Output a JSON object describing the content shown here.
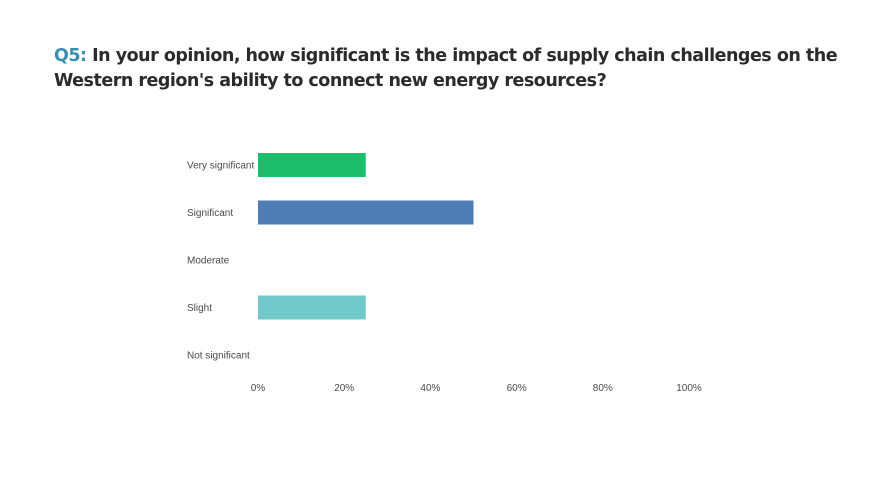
{
  "title": {
    "qnum": "Q5:",
    "text": " In your opinion, how significant is the impact of supply chain challenges on the Western region's ability to connect new energy resources?"
  },
  "chart_data": {
    "type": "bar",
    "orientation": "horizontal",
    "categories": [
      "Very significant",
      "Significant",
      "Moderate",
      "Slight",
      "Not significant"
    ],
    "values": [
      25,
      50,
      0,
      25,
      0
    ],
    "colors": [
      "#1cbe6e",
      "#4f7cb4",
      "#4f7cb4",
      "#72c9cc",
      "#72c9cc"
    ],
    "xlim": [
      0,
      100
    ],
    "xticks": [
      "0%",
      "20%",
      "40%",
      "60%",
      "80%",
      "100%"
    ],
    "grid": false,
    "legend": false
  }
}
